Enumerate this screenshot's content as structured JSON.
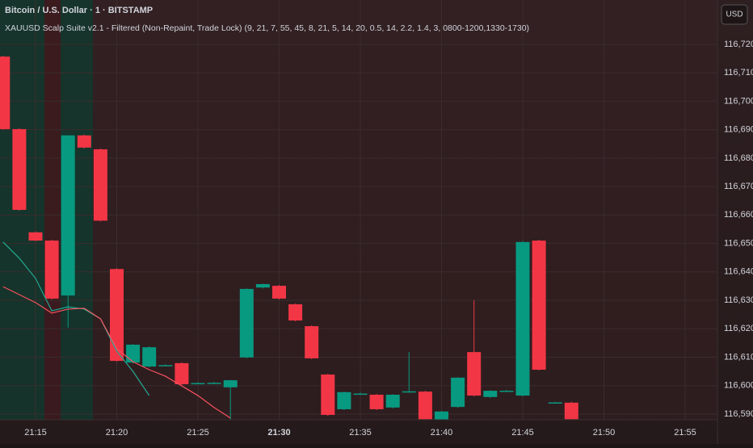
{
  "header": {
    "symbol": "Bitcoin / U.S. Dollar · 1 · BITSTAMP",
    "indicator": "XAUUSD Scalp Suite v2.1 - Filtered (Non-Repaint, Trade Lock) (9, 21, 7, 55, 45, 8, 21, 5, 14, 20, 0.5, 14, 2.2, 1.4, 3, 0800-1200,1330-1730)",
    "currency": "USD"
  },
  "chart_data": {
    "type": "candlestick",
    "x": [
      "21:13",
      "21:14",
      "21:15",
      "21:16",
      "21:17",
      "21:18",
      "21:19",
      "21:20",
      "21:21",
      "21:22",
      "21:23",
      "21:24",
      "21:25",
      "21:26",
      "21:27",
      "21:28",
      "21:29",
      "21:30",
      "21:31",
      "21:32",
      "21:33",
      "21:34",
      "21:35",
      "21:36",
      "21:37",
      "21:38",
      "21:39",
      "21:40",
      "21:41",
      "21:42",
      "21:43",
      "21:44",
      "21:45",
      "21:46",
      "21:47",
      "21:48"
    ],
    "open": [
      116715.7,
      116690.2,
      116653.9,
      116651.0,
      116631.7,
      116688.0,
      116683.1,
      116641.0,
      116608.1,
      116606.7,
      116607.1,
      116607.9,
      116600.8,
      116600.9,
      116599.4,
      116609.9,
      116634.5,
      116635.1,
      116628.6,
      116620.9,
      116603.9,
      116591.7,
      116597.1,
      116596.8,
      116592.3,
      116597.8,
      116597.9,
      116588.0,
      116592.5,
      116611.8,
      116596.0,
      116598.1,
      116596.5,
      116651.0,
      116594.0,
      116594.0
    ],
    "high": [
      116716.0,
      116690.5,
      116654.2,
      116651.3,
      116688.0,
      116688.3,
      116683.4,
      116641.3,
      116614.6,
      116613.8,
      116607.5,
      116608.2,
      116601.2,
      116601.3,
      116602.0,
      116634.2,
      116635.8,
      116635.4,
      116628.9,
      116621.2,
      116604.2,
      116597.9,
      116597.5,
      116597.1,
      116597.0,
      116611.8,
      116598.2,
      116591.1,
      116603.0,
      116630.0,
      116598.4,
      116598.5,
      116650.8,
      116651.3,
      116594.3,
      116594.3
    ],
    "low": [
      116690.0,
      116661.5,
      116650.8,
      116630.3,
      116620.4,
      116683.4,
      116657.7,
      116608.4,
      116607.8,
      116606.4,
      116606.8,
      116600.2,
      116600.5,
      116600.6,
      116588.0,
      116609.6,
      116634.2,
      116630.3,
      116622.6,
      116609.3,
      116589.4,
      116591.4,
      116596.8,
      116591.4,
      116592.0,
      116597.5,
      116588.0,
      116588.0,
      116592.2,
      116596.2,
      116595.7,
      116597.8,
      116596.2,
      116605.3,
      116593.7,
      116588.0
    ],
    "close": [
      116690.2,
      116661.8,
      116651.0,
      116630.6,
      116688.0,
      116683.7,
      116658.0,
      116608.7,
      116614.4,
      116613.5,
      116607.2,
      116600.5,
      116600.9,
      116601.0,
      116601.9,
      116634.0,
      116635.7,
      116630.6,
      116622.9,
      116609.6,
      116589.7,
      116597.7,
      116597.2,
      116591.7,
      116596.8,
      116598.0,
      116588.2,
      116590.9,
      116602.8,
      116596.5,
      116598.2,
      116598.2,
      116650.5,
      116605.6,
      116594.1,
      116588.2
    ],
    "up_color": "#089981",
    "down_color": "#f23645",
    "overlays": [
      {
        "color": "#22ab94",
        "values": [
          116650.5,
          116644.8,
          116637.7,
          116626.3,
          116627.7,
          116626.9,
          116623.5,
          116612.1,
          116605.0,
          116596.5,
          null,
          null,
          null,
          null,
          null,
          null,
          null,
          null,
          null,
          null,
          null,
          null,
          null,
          null,
          null,
          null,
          null,
          null,
          null,
          null,
          null,
          null,
          null,
          null,
          null,
          null
        ]
      },
      {
        "color": "#f7525f",
        "values": [
          116634.8,
          116632.0,
          116629.2,
          116625.5,
          116626.9,
          116627.2,
          116623.5,
          116613.0,
          116608.4,
          116605.6,
          116603.3,
          116599.9,
          116596.5,
          116592.3,
          116588.6,
          null,
          null,
          null,
          null,
          null,
          null,
          null,
          null,
          null,
          null,
          null,
          null,
          null,
          null,
          null,
          null,
          null,
          null,
          null,
          null,
          null
        ]
      }
    ],
    "ylim": [
      116588.0,
      116735.6
    ],
    "yticks": [
      {
        "value": 116590,
        "label": "116,590"
      },
      {
        "value": 116600,
        "label": "116,600"
      },
      {
        "value": 116610,
        "label": "116,610"
      },
      {
        "value": 116620,
        "label": "116,620"
      },
      {
        "value": 116630,
        "label": "116,630"
      },
      {
        "value": 116640,
        "label": "116,640"
      },
      {
        "value": 116650,
        "label": "116,650"
      },
      {
        "value": 116660,
        "label": "116,660"
      },
      {
        "value": 116670,
        "label": "116,670"
      },
      {
        "value": 116680,
        "label": "116,680"
      },
      {
        "value": 116690,
        "label": "116,690"
      },
      {
        "value": 116700,
        "label": "116,700"
      },
      {
        "value": 116710,
        "label": "116,710"
      },
      {
        "value": 116720,
        "label": "116,720"
      }
    ],
    "xticks": [
      "21:15",
      "21:20",
      "21:25",
      "21:30",
      "21:35",
      "21:40",
      "21:45",
      "21:50",
      "21:55"
    ],
    "grid": true
  }
}
